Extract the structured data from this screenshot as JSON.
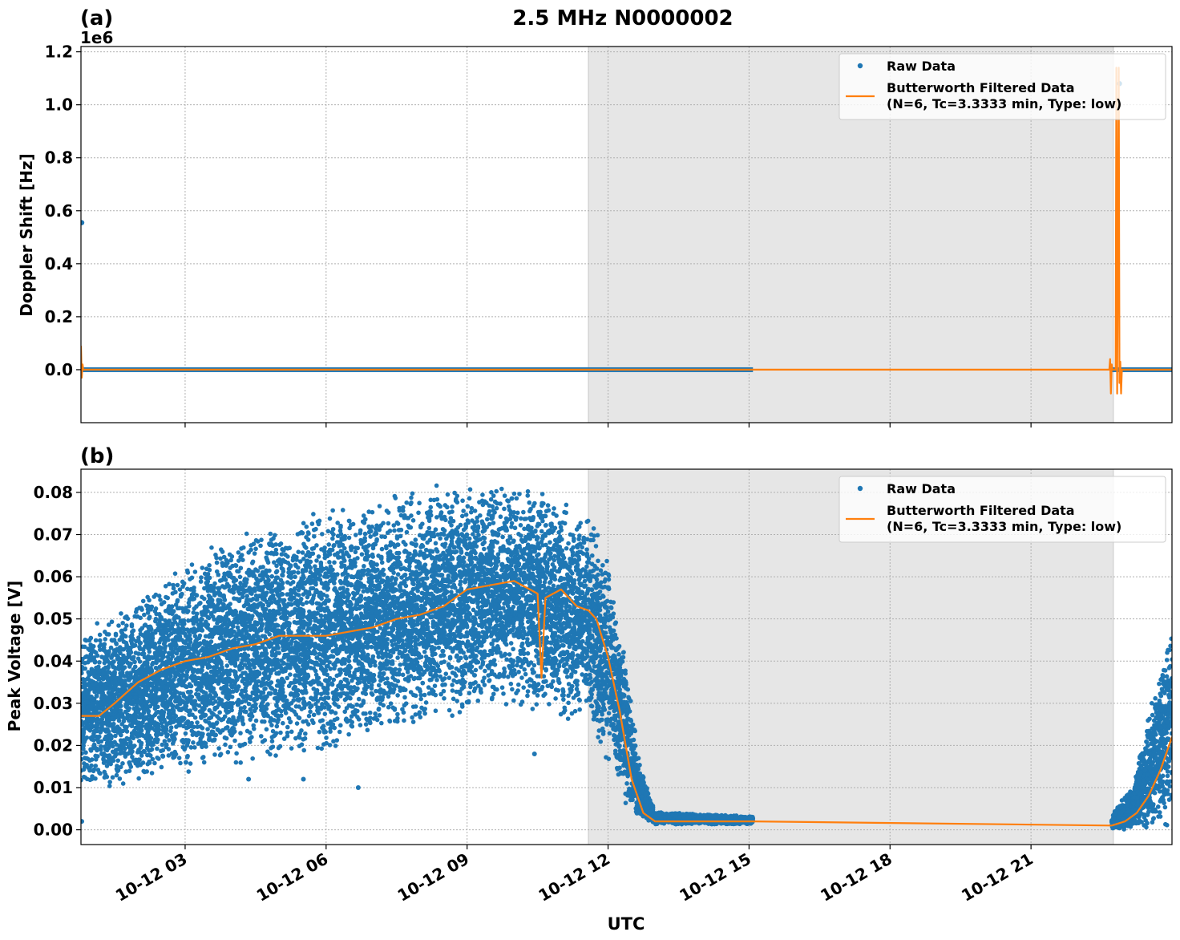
{
  "figure": {
    "title": "2.5 MHz N0000002",
    "xlabel": "UTC"
  },
  "colors": {
    "raw": "#1f77b4",
    "filtered": "#ff7f0e",
    "shade": "#e6e6e6",
    "grid": "#b0b0b0"
  },
  "chart_data": [
    {
      "type": "scatter",
      "panel_label": "(a)",
      "ylabel": "Doppler Shift [Hz]",
      "offset_text": "1e6",
      "y_scale_factor": 1000000,
      "ylim": [
        -0.2,
        1.22
      ],
      "yticks": [
        0.0,
        0.2,
        0.4,
        0.6,
        0.8,
        1.0,
        1.2
      ],
      "ytick_labels": [
        "0.0",
        "0.2",
        "0.4",
        "0.6",
        "0.8",
        "1.0",
        "1.2"
      ],
      "xlim": [
        "2024-10-12T00:47",
        "2024-10-13T00:00"
      ],
      "xticks": [
        "10-12 03",
        "10-12 06",
        "10-12 09",
        "10-12 12",
        "10-12 15",
        "10-12 18",
        "10-12 21"
      ],
      "grid": true,
      "legend_position": "top-right",
      "shaded_interval": [
        "11:35",
        "22:45"
      ],
      "series": [
        {
          "name": "Raw Data",
          "kind": "points",
          "segments": [
            {
              "from": "00:47",
              "to": "15:05",
              "value": 0.0
            },
            {
              "from": "22:43",
              "to": "00:00",
              "value": 0.0
            }
          ],
          "outliers": [
            {
              "t": "00:47",
              "value": 0.555
            },
            {
              "t": "22:52",
              "value": 1.08
            }
          ]
        },
        {
          "name": "Butterworth Filtered Data\n(N=6, Tc=3.3333 min, Type: low)",
          "kind": "line",
          "points": [
            [
              "00:47",
              0.09
            ],
            [
              "00:48",
              -0.03
            ],
            [
              "00:49",
              0.02
            ],
            [
              "00:50",
              0.0
            ],
            [
              "15:05",
              0.0
            ],
            [
              "22:40",
              0.0
            ],
            [
              "22:41",
              0.04
            ],
            [
              "22:42",
              -0.09
            ],
            [
              "22:43",
              0.02
            ],
            [
              "22:44",
              0.0
            ],
            [
              "22:48",
              0.0
            ],
            [
              "22:49",
              1.14
            ],
            [
              "22:50",
              -0.09
            ],
            [
              "22:52",
              1.14
            ],
            [
              "22:53",
              -0.05
            ],
            [
              "22:54",
              0.03
            ],
            [
              "22:55",
              -0.09
            ],
            [
              "22:56",
              0.0
            ],
            [
              "00:00",
              0.0
            ]
          ]
        }
      ]
    },
    {
      "type": "scatter",
      "panel_label": "(b)",
      "ylabel": "Peak Voltage [V]",
      "ylim": [
        -0.0035,
        0.0855
      ],
      "yticks": [
        0.0,
        0.01,
        0.02,
        0.03,
        0.04,
        0.05,
        0.06,
        0.07,
        0.08
      ],
      "ytick_labels": [
        "0.00",
        "0.01",
        "0.02",
        "0.03",
        "0.04",
        "0.05",
        "0.06",
        "0.07",
        "0.08"
      ],
      "xlim": [
        "2024-10-12T00:47",
        "2024-10-13T00:00"
      ],
      "xticks": [
        "10-12 03",
        "10-12 06",
        "10-12 09",
        "10-12 12",
        "10-12 15",
        "10-12 18",
        "10-12 21"
      ],
      "xtick_labels": [
        "10-12 03",
        "10-12 06",
        "10-12 09",
        "10-12 12",
        "10-12 15",
        "10-12 18",
        "10-12 21"
      ],
      "grid": true,
      "legend_position": "top-right",
      "shaded_interval": [
        "11:35",
        "22:45"
      ],
      "series": [
        {
          "name": "Raw Data",
          "kind": "point-cloud",
          "envelope": [
            [
              "00:47",
              0.014,
              0.045
            ],
            [
              "01:30",
              0.013,
              0.047
            ],
            [
              "02:30",
              0.017,
              0.055
            ],
            [
              "03:30",
              0.019,
              0.062
            ],
            [
              "04:30",
              0.021,
              0.067
            ],
            [
              "05:30",
              0.022,
              0.07
            ],
            [
              "06:30",
              0.025,
              0.072
            ],
            [
              "07:30",
              0.028,
              0.074
            ],
            [
              "08:30",
              0.031,
              0.077
            ],
            [
              "09:30",
              0.035,
              0.078
            ],
            [
              "10:30",
              0.033,
              0.076
            ],
            [
              "11:20",
              0.03,
              0.073
            ],
            [
              "11:40",
              0.028,
              0.07
            ],
            [
              "12:00",
              0.02,
              0.06
            ],
            [
              "12:20",
              0.01,
              0.04
            ],
            [
              "12:40",
              0.004,
              0.015
            ],
            [
              "13:00",
              0.0015,
              0.004
            ],
            [
              "15:05",
              0.0015,
              0.003
            ],
            [
              "22:43",
              0.0005,
              0.003
            ],
            [
              "23:10",
              0.001,
              0.01
            ],
            [
              "23:40",
              0.004,
              0.032
            ],
            [
              "00:00",
              0.005,
              0.045
            ]
          ],
          "isolated_points": [
            [
              "00:47",
              0.002
            ],
            [
              "03:00",
              0.016
            ],
            [
              "04:20",
              0.012
            ],
            [
              "05:30",
              0.012
            ],
            [
              "06:40",
              0.01
            ],
            [
              "10:25",
              0.018
            ]
          ]
        },
        {
          "name": "Butterworth Filtered Data\n(N=6, Tc=3.3333 min, Type: low)",
          "kind": "line",
          "points": [
            [
              "00:47",
              0.027
            ],
            [
              "01:10",
              0.027
            ],
            [
              "01:30",
              0.03
            ],
            [
              "02:00",
              0.035
            ],
            [
              "02:30",
              0.038
            ],
            [
              "03:00",
              0.04
            ],
            [
              "03:30",
              0.041
            ],
            [
              "04:00",
              0.043
            ],
            [
              "04:30",
              0.044
            ],
            [
              "05:00",
              0.046
            ],
            [
              "05:30",
              0.046
            ],
            [
              "06:00",
              0.046
            ],
            [
              "06:30",
              0.047
            ],
            [
              "07:00",
              0.048
            ],
            [
              "07:30",
              0.05
            ],
            [
              "08:00",
              0.051
            ],
            [
              "08:30",
              0.053
            ],
            [
              "09:00",
              0.057
            ],
            [
              "09:30",
              0.058
            ],
            [
              "10:00",
              0.059
            ],
            [
              "10:30",
              0.056
            ],
            [
              "10:35",
              0.036
            ],
            [
              "10:40",
              0.055
            ],
            [
              "11:00",
              0.057
            ],
            [
              "11:20",
              0.053
            ],
            [
              "11:35",
              0.052
            ],
            [
              "11:45",
              0.05
            ],
            [
              "12:00",
              0.041
            ],
            [
              "12:15",
              0.028
            ],
            [
              "12:30",
              0.012
            ],
            [
              "12:45",
              0.004
            ],
            [
              "13:00",
              0.002
            ],
            [
              "15:05",
              0.002
            ],
            [
              "22:43",
              0.001
            ],
            [
              "23:00",
              0.002
            ],
            [
              "23:15",
              0.004
            ],
            [
              "23:30",
              0.008
            ],
            [
              "23:45",
              0.014
            ],
            [
              "00:00",
              0.022
            ]
          ]
        }
      ]
    }
  ]
}
